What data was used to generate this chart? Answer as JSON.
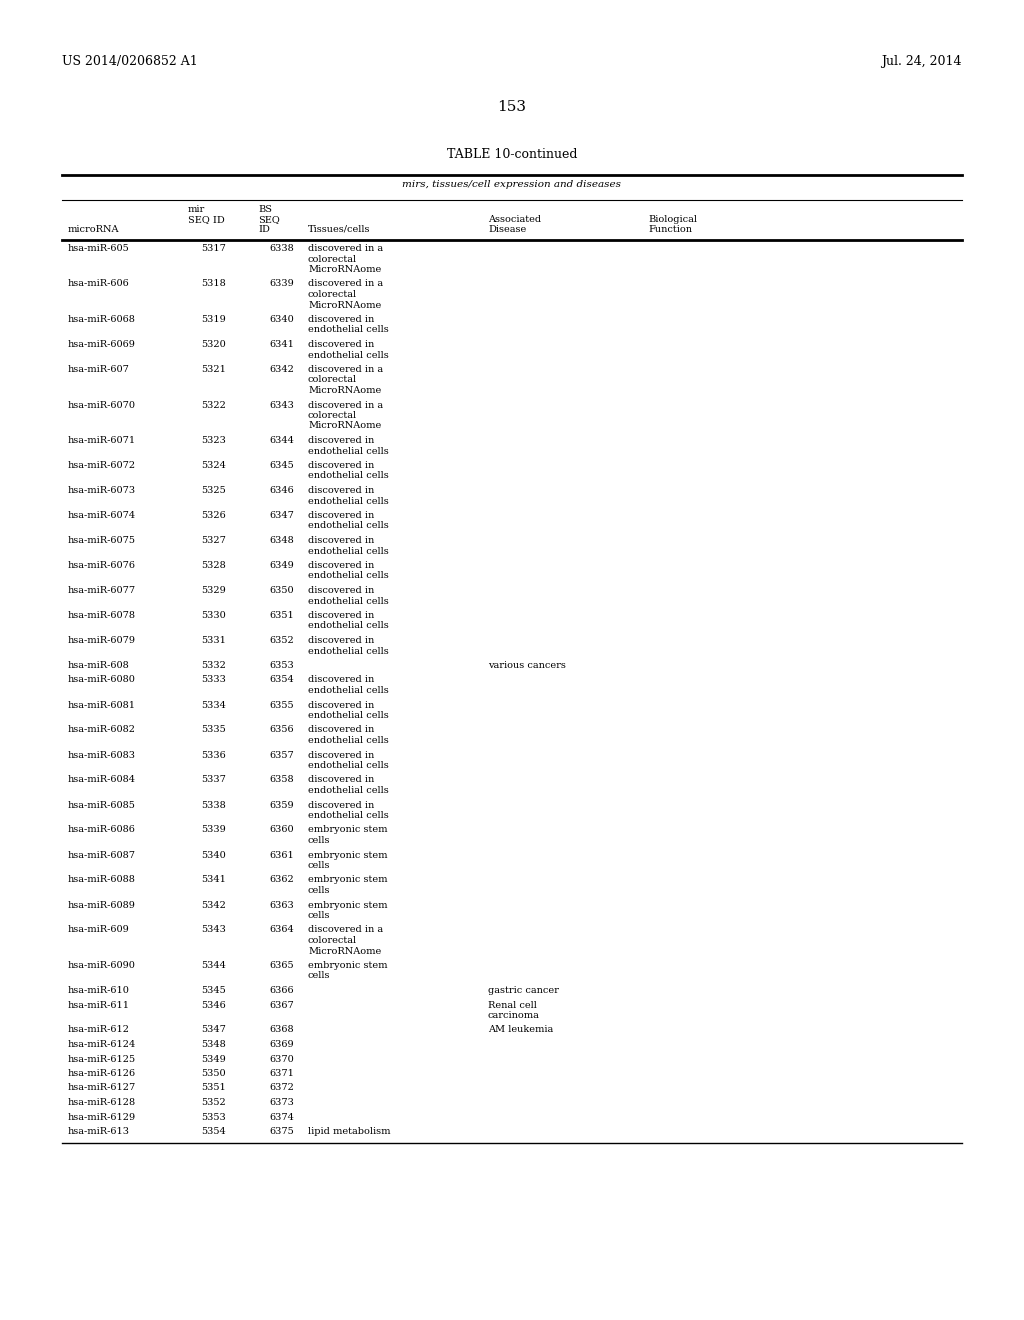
{
  "header_left": "US 2014/0206852 A1",
  "header_right": "Jul. 24, 2014",
  "page_number": "153",
  "table_title": "TABLE 10-continued",
  "table_subtitle": "mirs, tissues/cell expression and diseases",
  "rows": [
    [
      "hsa-miR-605",
      "5317",
      "6338",
      "discovered in a\ncolorectal\nMicroRNAome",
      "",
      ""
    ],
    [
      "hsa-miR-606",
      "5318",
      "6339",
      "discovered in a\ncolorectal\nMicroRNAome",
      "",
      ""
    ],
    [
      "hsa-miR-6068",
      "5319",
      "6340",
      "discovered in\nendothelial cells",
      "",
      ""
    ],
    [
      "hsa-miR-6069",
      "5320",
      "6341",
      "discovered in\nendothelial cells",
      "",
      ""
    ],
    [
      "hsa-miR-607",
      "5321",
      "6342",
      "discovered in a\ncolorectal\nMicroRNAome",
      "",
      ""
    ],
    [
      "hsa-miR-6070",
      "5322",
      "6343",
      "discovered in a\ncolorectal\nMicroRNAome",
      "",
      ""
    ],
    [
      "hsa-miR-6071",
      "5323",
      "6344",
      "discovered in\nendothelial cells",
      "",
      ""
    ],
    [
      "hsa-miR-6072",
      "5324",
      "6345",
      "discovered in\nendothelial cells",
      "",
      ""
    ],
    [
      "hsa-miR-6073",
      "5325",
      "6346",
      "discovered in\nendothelial cells",
      "",
      ""
    ],
    [
      "hsa-miR-6074",
      "5326",
      "6347",
      "discovered in\nendothelial cells",
      "",
      ""
    ],
    [
      "hsa-miR-6075",
      "5327",
      "6348",
      "discovered in\nendothelial cells",
      "",
      ""
    ],
    [
      "hsa-miR-6076",
      "5328",
      "6349",
      "discovered in\nendothelial cells",
      "",
      ""
    ],
    [
      "hsa-miR-6077",
      "5329",
      "6350",
      "discovered in\nendothelial cells",
      "",
      ""
    ],
    [
      "hsa-miR-6078",
      "5330",
      "6351",
      "discovered in\nendothelial cells",
      "",
      ""
    ],
    [
      "hsa-miR-6079",
      "5331",
      "6352",
      "discovered in\nendothelial cells",
      "",
      ""
    ],
    [
      "hsa-miR-608",
      "5332",
      "6353",
      "",
      "various cancers",
      ""
    ],
    [
      "hsa-miR-6080",
      "5333",
      "6354",
      "discovered in\nendothelial cells",
      "",
      ""
    ],
    [
      "hsa-miR-6081",
      "5334",
      "6355",
      "discovered in\nendothelial cells",
      "",
      ""
    ],
    [
      "hsa-miR-6082",
      "5335",
      "6356",
      "discovered in\nendothelial cells",
      "",
      ""
    ],
    [
      "hsa-miR-6083",
      "5336",
      "6357",
      "discovered in\nendothelial cells",
      "",
      ""
    ],
    [
      "hsa-miR-6084",
      "5337",
      "6358",
      "discovered in\nendothelial cells",
      "",
      ""
    ],
    [
      "hsa-miR-6085",
      "5338",
      "6359",
      "discovered in\nendothelial cells",
      "",
      ""
    ],
    [
      "hsa-miR-6086",
      "5339",
      "6360",
      "embryonic stem\ncells",
      "",
      ""
    ],
    [
      "hsa-miR-6087",
      "5340",
      "6361",
      "embryonic stem\ncells",
      "",
      ""
    ],
    [
      "hsa-miR-6088",
      "5341",
      "6362",
      "embryonic stem\ncells",
      "",
      ""
    ],
    [
      "hsa-miR-6089",
      "5342",
      "6363",
      "embryonic stem\ncells",
      "",
      ""
    ],
    [
      "hsa-miR-609",
      "5343",
      "6364",
      "discovered in a\ncolorectal\nMicroRNAome",
      "",
      ""
    ],
    [
      "hsa-miR-6090",
      "5344",
      "6365",
      "embryonic stem\ncells",
      "",
      ""
    ],
    [
      "hsa-miR-610",
      "5345",
      "6366",
      "",
      "gastric cancer",
      ""
    ],
    [
      "hsa-miR-611",
      "5346",
      "6367",
      "",
      "Renal cell\ncarcinoma",
      ""
    ],
    [
      "hsa-miR-612",
      "5347",
      "6368",
      "",
      "AM leukemia",
      ""
    ],
    [
      "hsa-miR-6124",
      "5348",
      "6369",
      "",
      "",
      ""
    ],
    [
      "hsa-miR-6125",
      "5349",
      "6370",
      "",
      "",
      ""
    ],
    [
      "hsa-miR-6126",
      "5350",
      "6371",
      "",
      "",
      ""
    ],
    [
      "hsa-miR-6127",
      "5351",
      "6372",
      "",
      "",
      ""
    ],
    [
      "hsa-miR-6128",
      "5352",
      "6373",
      "",
      "",
      ""
    ],
    [
      "hsa-miR-6129",
      "5353",
      "6374",
      "",
      "",
      ""
    ],
    [
      "hsa-miR-613",
      "5354",
      "6375",
      "lipid metabolism",
      "",
      ""
    ]
  ],
  "bg_color": "#ffffff",
  "text_color": "#000000",
  "font_size": 7.0,
  "header_font_size": 9.0,
  "page_num_font_size": 11.0,
  "table_title_font_size": 9.0
}
